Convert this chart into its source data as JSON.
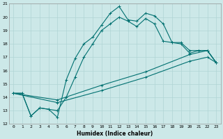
{
  "xlabel": "Humidex (Indice chaleur)",
  "bg_color": "#cce8e8",
  "grid_color": "#b0d4d4",
  "line_color": "#007070",
  "xlim": [
    -0.5,
    23.5
  ],
  "ylim": [
    12,
    21
  ],
  "yticks": [
    12,
    13,
    14,
    15,
    16,
    17,
    18,
    19,
    20,
    21
  ],
  "xticks": [
    0,
    1,
    2,
    3,
    4,
    5,
    6,
    7,
    8,
    9,
    10,
    11,
    12,
    13,
    14,
    15,
    16,
    17,
    18,
    19,
    20,
    21,
    22,
    23
  ],
  "line1_x": [
    0,
    1,
    2,
    3,
    4,
    5,
    6,
    7,
    8,
    9,
    10,
    11,
    12,
    13,
    14,
    15,
    16,
    17,
    18,
    19,
    20,
    21,
    22,
    23
  ],
  "line1_y": [
    14.3,
    14.3,
    12.6,
    13.2,
    13.1,
    12.5,
    15.3,
    16.9,
    18.0,
    18.5,
    19.4,
    20.3,
    20.8,
    19.8,
    19.7,
    20.3,
    20.1,
    19.5,
    18.1,
    18.1,
    17.5,
    17.5,
    17.5,
    16.6
  ],
  "line2_x": [
    0,
    1,
    2,
    3,
    4,
    5,
    6,
    7,
    8,
    9,
    10,
    11,
    12,
    13,
    14,
    15,
    16,
    17,
    18,
    19,
    20,
    21,
    22,
    23
  ],
  "line2_y": [
    14.3,
    14.3,
    12.6,
    13.2,
    13.1,
    13.0,
    14.0,
    15.5,
    17.0,
    18.0,
    19.0,
    19.5,
    20.0,
    19.7,
    19.3,
    19.9,
    19.5,
    18.2,
    18.1,
    18.0,
    17.3,
    17.5,
    17.5,
    16.6
  ],
  "line3_x": [
    0,
    5,
    10,
    15,
    20,
    22,
    23
  ],
  "line3_y": [
    14.3,
    13.8,
    14.9,
    15.9,
    17.2,
    17.5,
    16.6
  ],
  "line4_x": [
    0,
    5,
    10,
    15,
    20,
    22,
    23
  ],
  "line4_y": [
    14.3,
    13.6,
    14.5,
    15.5,
    16.7,
    17.0,
    16.6
  ]
}
